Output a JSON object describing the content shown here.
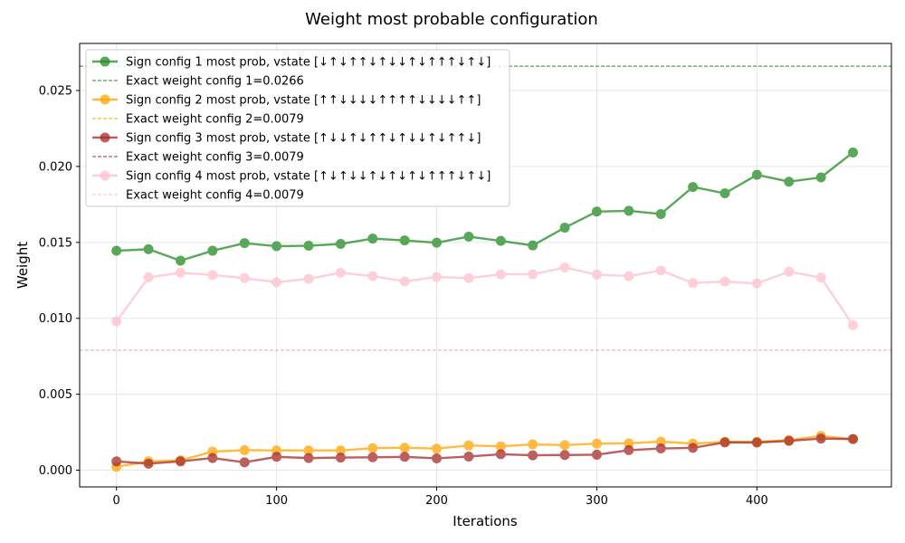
{
  "chart_data": {
    "type": "line",
    "title": "Weight most probable configuration",
    "xlabel": "Iterations",
    "ylabel": "Weight",
    "xlim": [
      -23,
      484
    ],
    "ylim": [
      -0.0011,
      0.0281
    ],
    "xticks": [
      0,
      100,
      200,
      300,
      400
    ],
    "xtick_labels": [
      "0",
      "100",
      "200",
      "300",
      "400"
    ],
    "yticks": [
      0.0,
      0.005,
      0.01,
      0.015,
      0.02,
      0.025
    ],
    "ytick_labels": [
      "0.000",
      "0.005",
      "0.010",
      "0.015",
      "0.020",
      "0.025"
    ],
    "grid": true,
    "legend_position": "upper-left",
    "x": [
      0,
      20,
      40,
      60,
      80,
      100,
      120,
      140,
      160,
      180,
      200,
      220,
      240,
      260,
      280,
      300,
      320,
      340,
      360,
      380,
      400,
      420,
      440,
      460
    ],
    "series": [
      {
        "name": "Sign config 1 most prob, vstate [↓↑↓↑↑↓↑↓↓↑↓↑↑↑↓↑↓]",
        "color": "#228b22",
        "values": [
          0.01445,
          0.01455,
          0.0138,
          0.01445,
          0.01495,
          0.01475,
          0.01478,
          0.0149,
          0.01525,
          0.01513,
          0.01498,
          0.01538,
          0.0151,
          0.0148,
          0.01597,
          0.01703,
          0.01708,
          0.01687,
          0.01865,
          0.01823,
          0.01945,
          0.019,
          0.01928,
          0.02092
        ]
      },
      {
        "name": "Sign config 2 most prob, vstate [↑↑↓↓↓↓↑↑↑↑↓↓↓↓↑↑]",
        "color": "#ffa500",
        "values": [
          0.00022,
          0.00058,
          0.00065,
          0.00122,
          0.00132,
          0.0013,
          0.0013,
          0.0013,
          0.00145,
          0.00148,
          0.00142,
          0.00163,
          0.00157,
          0.0017,
          0.00165,
          0.00175,
          0.00177,
          0.00188,
          0.00175,
          0.00187,
          0.00187,
          0.00198,
          0.00225,
          0.00205
        ]
      },
      {
        "name": "Sign config 3 most prob, vstate [↑↓↓↑↓↑↑↓↑↓↓↑↓↑↑↓]",
        "color": "#a52a2a",
        "values": [
          0.00058,
          0.00043,
          0.00058,
          0.0008,
          0.00052,
          0.00088,
          0.0008,
          0.00083,
          0.00085,
          0.00088,
          0.00078,
          0.0009,
          0.00105,
          0.00098,
          0.001,
          0.00102,
          0.00132,
          0.00143,
          0.00147,
          0.00183,
          0.00182,
          0.00193,
          0.00208,
          0.00205
        ]
      },
      {
        "name": "Sign config 4 most prob, vstate [↑↓↑↓↓↑↓↑↓↑↓↑↑↑↓↑↓]",
        "color": "#ffc0cb",
        "values": [
          0.0098,
          0.0127,
          0.013,
          0.01285,
          0.01265,
          0.01237,
          0.0126,
          0.013,
          0.01278,
          0.01243,
          0.01272,
          0.01265,
          0.0129,
          0.0129,
          0.01335,
          0.01288,
          0.01278,
          0.01315,
          0.01232,
          0.01242,
          0.0123,
          0.01307,
          0.01268,
          0.00955
        ]
      }
    ],
    "reference_lines": [
      {
        "name": "Exact weight config 1=0.0266",
        "value": 0.0266,
        "color": "#228b22"
      },
      {
        "name": "Exact weight config 2=0.0079",
        "value": 0.0079,
        "color": "#ffa500"
      },
      {
        "name": "Exact weight config 3=0.0079",
        "value": 0.0079,
        "color": "#a52a2a"
      },
      {
        "name": "Exact weight config 4=0.0079",
        "value": 0.0079,
        "color": "#ffc0cb"
      }
    ]
  }
}
